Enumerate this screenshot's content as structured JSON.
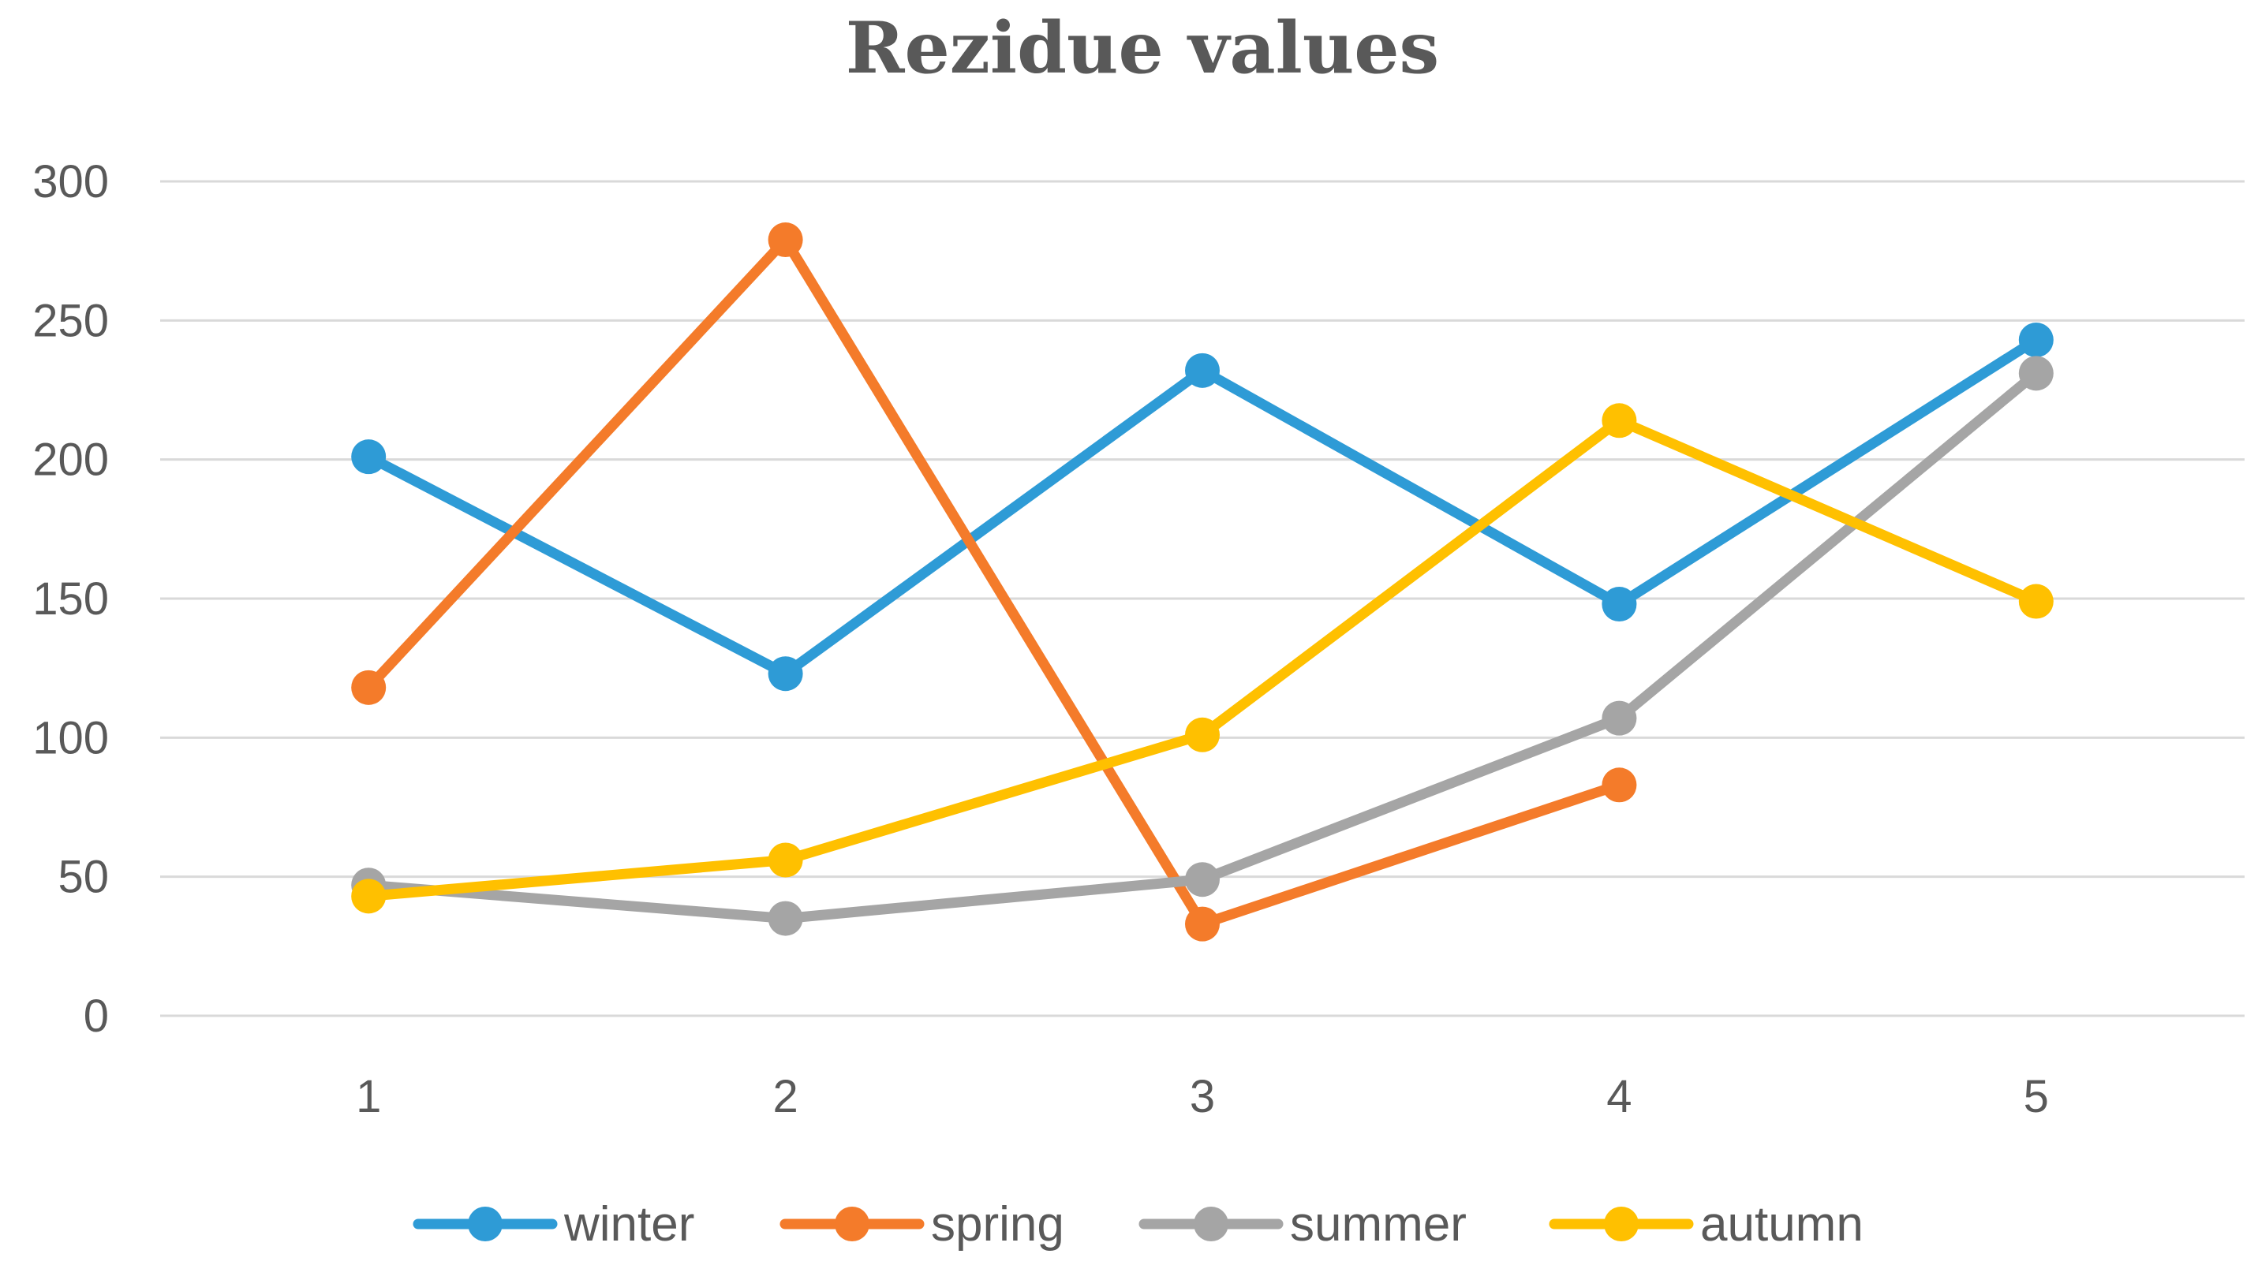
{
  "chart_data": {
    "type": "line",
    "title": "Rezidue values",
    "xlabel": "",
    "ylabel": "",
    "categories": [
      "1",
      "2",
      "3",
      "4",
      "5"
    ],
    "ylim": [
      0,
      300
    ],
    "yticks": [
      0,
      50,
      100,
      150,
      200,
      250,
      300
    ],
    "grid": true,
    "legend_position": "bottom",
    "series": [
      {
        "name": "winter",
        "color": "#2E9BD6",
        "values": [
          201,
          123,
          232,
          148,
          243
        ]
      },
      {
        "name": "spring",
        "color": "#F47B2A",
        "values": [
          118,
          279,
          33,
          83,
          null
        ]
      },
      {
        "name": "summer",
        "color": "#A5A5A5",
        "values": [
          47,
          35,
          49,
          107,
          231
        ]
      },
      {
        "name": "autumn",
        "color": "#FFC000",
        "values": [
          43,
          56,
          101,
          214,
          149
        ]
      }
    ]
  }
}
